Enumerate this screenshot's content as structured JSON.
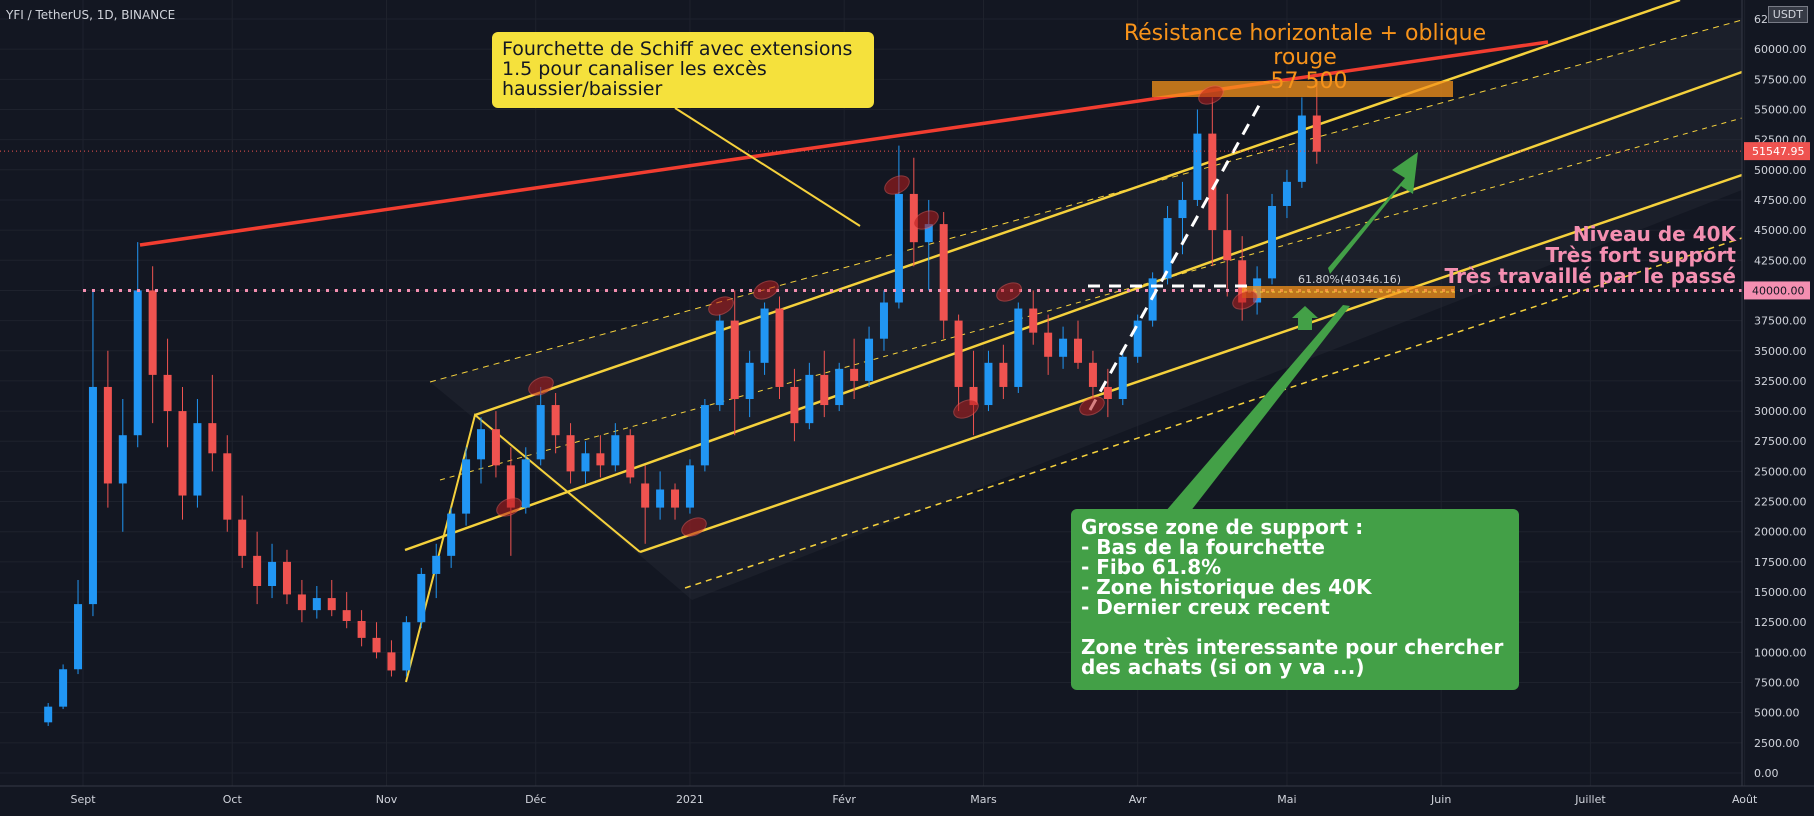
{
  "header": {
    "symbol": "YFI / TetherUS, 1D, BINANCE",
    "unit": "USDT"
  },
  "annotations": {
    "schiff_note": "Fourchette de Schiff avec extensions 1.5 pour canaliser les excès haussier/baissier",
    "resistance_line1": "Résistance horizontale + oblique rouge",
    "resistance_line2": "-57 500",
    "level_line1": "Niveau de 40K",
    "level_line2": "Très fort support",
    "level_line3": "Très travaillé par le passé",
    "fib_label": "61.80%(40346.16)",
    "support_note": "Grosse zone de support :\n- Bas de la fourchette\n- Fibo 61.8%\n- Zone historique des 40K\n- Dernier creux recent\n\nZone très interessante pour chercher\ndes achats (si on y va ...)"
  },
  "colors": {
    "background": "#131722",
    "grid": "#1e222d",
    "up": "#2196f3",
    "down": "#ef5350",
    "pitchfork": "#f5d13c",
    "resistance": "#f23d30",
    "level": "#f48fb1",
    "zone": "#f7931a",
    "arrow": "#43a047"
  },
  "chart_data": {
    "type": "candlestick",
    "y_axis": {
      "ticks": [
        "62500.00",
        "60000.00",
        "57500.00",
        "55000.00",
        "52500.00",
        "50000.00",
        "47500.00",
        "45000.00",
        "42500.00",
        "40000.00",
        "37500.00",
        "35000.00",
        "32500.00",
        "30000.00",
        "27500.00",
        "25000.00",
        "22500.00",
        "20000.00",
        "17500.00",
        "15000.00",
        "12500.00",
        "10000.00",
        "7500.00",
        "5000.00",
        "2500.00",
        "0.00"
      ],
      "range": [
        -2000,
        64500
      ]
    },
    "x_axis": {
      "ticks": [
        "Sept",
        "Oct",
        "Nov",
        "Déc",
        "2021",
        "Févr",
        "Mars",
        "Avr",
        "Mai",
        "Juin",
        "Juillet",
        "Août"
      ]
    },
    "current_price": "51547.95",
    "level_price": "40000.00",
    "candles": [
      [
        "2020-08-25",
        4200,
        5800,
        3900,
        5500
      ],
      [
        "2020-08-28",
        5500,
        9000,
        5300,
        8600
      ],
      [
        "2020-08-31",
        8600,
        16000,
        8200,
        14000
      ],
      [
        "2020-09-03",
        14000,
        40000,
        13000,
        32000
      ],
      [
        "2020-09-06",
        32000,
        35000,
        22000,
        24000
      ],
      [
        "2020-09-09",
        24000,
        31000,
        20000,
        28000
      ],
      [
        "2020-09-12",
        28000,
        44000,
        27000,
        40000
      ],
      [
        "2020-09-15",
        40000,
        42000,
        29000,
        33000
      ],
      [
        "2020-09-18",
        33000,
        36000,
        27000,
        30000
      ],
      [
        "2020-09-21",
        30000,
        32000,
        21000,
        23000
      ],
      [
        "2020-09-24",
        23000,
        31000,
        22000,
        29000
      ],
      [
        "2020-09-27",
        29000,
        33000,
        25000,
        26500
      ],
      [
        "2020-09-30",
        26500,
        28000,
        20000,
        21000
      ],
      [
        "2020-10-03",
        21000,
        23000,
        17000,
        18000
      ],
      [
        "2020-10-06",
        18000,
        20000,
        14000,
        15500
      ],
      [
        "2020-10-09",
        15500,
        19000,
        14500,
        17500
      ],
      [
        "2020-10-12",
        17500,
        18500,
        14000,
        14800
      ],
      [
        "2020-10-15",
        14800,
        16000,
        12500,
        13500
      ],
      [
        "2020-10-18",
        13500,
        15500,
        12800,
        14500
      ],
      [
        "2020-10-21",
        14500,
        16000,
        13000,
        13500
      ],
      [
        "2020-10-24",
        13500,
        15000,
        12000,
        12600
      ],
      [
        "2020-10-27",
        12600,
        13500,
        10500,
        11200
      ],
      [
        "2020-10-30",
        11200,
        12500,
        9500,
        10000
      ],
      [
        "2020-11-02",
        10000,
        11000,
        8000,
        8500
      ],
      [
        "2020-11-05",
        8500,
        13000,
        8000,
        12500
      ],
      [
        "2020-11-08",
        12500,
        17000,
        12000,
        16500
      ],
      [
        "2020-11-11",
        16500,
        19000,
        14500,
        18000
      ],
      [
        "2020-11-14",
        18000,
        22000,
        17000,
        21500
      ],
      [
        "2020-11-17",
        21500,
        27000,
        20500,
        26000
      ],
      [
        "2020-11-20",
        26000,
        29500,
        24000,
        28500
      ],
      [
        "2020-11-23",
        28500,
        30000,
        24500,
        25500
      ],
      [
        "2020-11-26",
        25500,
        27000,
        18000,
        22000
      ],
      [
        "2020-11-29",
        22000,
        27000,
        21500,
        26000
      ],
      [
        "2020-12-02",
        26000,
        32000,
        25500,
        30500
      ],
      [
        "2020-12-05",
        30500,
        31500,
        26500,
        28000
      ],
      [
        "2020-12-08",
        28000,
        29000,
        24000,
        25000
      ],
      [
        "2020-12-11",
        25000,
        27500,
        24000,
        26500
      ],
      [
        "2020-12-14",
        26500,
        28000,
        24500,
        25500
      ],
      [
        "2020-12-17",
        25500,
        29000,
        25000,
        28000
      ],
      [
        "2020-12-20",
        28000,
        28500,
        24000,
        24500
      ],
      [
        "2020-12-23",
        24000,
        25500,
        19000,
        22000
      ],
      [
        "2020-12-26",
        22000,
        25000,
        21000,
        23500
      ],
      [
        "2020-12-29",
        23500,
        24000,
        21000,
        22000
      ],
      [
        "2021-01-01",
        22000,
        26000,
        21500,
        25500
      ],
      [
        "2021-01-04",
        25500,
        31000,
        25000,
        30500
      ],
      [
        "2021-01-07",
        30500,
        38000,
        30000,
        37500
      ],
      [
        "2021-01-10",
        37500,
        40000,
        28000,
        31000
      ],
      [
        "2021-01-13",
        31000,
        35000,
        29500,
        34000
      ],
      [
        "2021-01-16",
        34000,
        39000,
        33000,
        38500
      ],
      [
        "2021-01-19",
        38500,
        39500,
        31000,
        32000
      ],
      [
        "2021-01-22",
        32000,
        33500,
        27500,
        29000
      ],
      [
        "2021-01-25",
        29000,
        34000,
        28500,
        33000
      ],
      [
        "2021-01-28",
        33000,
        35000,
        29500,
        30500
      ],
      [
        "2021-01-31",
        30500,
        34000,
        30000,
        33500
      ],
      [
        "2021-02-03",
        33500,
        36000,
        31000,
        32500
      ],
      [
        "2021-02-06",
        32500,
        37000,
        32000,
        36000
      ],
      [
        "2021-02-09",
        36000,
        40000,
        35000,
        39000
      ],
      [
        "2021-02-12",
        39000,
        52000,
        38500,
        48000
      ],
      [
        "2021-02-15",
        48000,
        51000,
        42000,
        44000
      ],
      [
        "2021-02-18",
        44000,
        47500,
        40000,
        45500
      ],
      [
        "2021-02-21",
        45500,
        46500,
        36000,
        37500
      ],
      [
        "2021-02-24",
        37500,
        38000,
        30000,
        32000
      ],
      [
        "2021-02-27",
        32000,
        35000,
        28000,
        30500
      ],
      [
        "2021-03-02",
        30500,
        35000,
        30000,
        34000
      ],
      [
        "2021-03-05",
        34000,
        35500,
        31000,
        32000
      ],
      [
        "2021-03-08",
        32000,
        39000,
        31500,
        38500
      ],
      [
        "2021-03-11",
        38500,
        40000,
        35500,
        36500
      ],
      [
        "2021-03-14",
        36500,
        38000,
        33000,
        34500
      ],
      [
        "2021-03-17",
        34500,
        37000,
        33500,
        36000
      ],
      [
        "2021-03-20",
        36000,
        37500,
        33500,
        34000
      ],
      [
        "2021-03-23",
        34000,
        35000,
        31000,
        32000
      ],
      [
        "2021-03-26",
        32000,
        33500,
        29500,
        31000
      ],
      [
        "2021-03-29",
        31000,
        35000,
        30500,
        34500
      ],
      [
        "2021-04-01",
        34500,
        38000,
        34000,
        37500
      ],
      [
        "2021-04-04",
        37500,
        41500,
        37000,
        41000
      ],
      [
        "2021-04-07",
        41000,
        47000,
        40500,
        46000
      ],
      [
        "2021-04-10",
        46000,
        49000,
        43000,
        47500
      ],
      [
        "2021-04-13",
        47500,
        55000,
        47000,
        53000
      ],
      [
        "2021-04-16",
        53000,
        56000,
        42000,
        45000
      ],
      [
        "2021-04-19",
        45000,
        48000,
        39500,
        42500
      ],
      [
        "2021-04-22",
        42500,
        44500,
        37500,
        39000
      ],
      [
        "2021-04-25",
        39000,
        42000,
        38000,
        41000
      ],
      [
        "2021-04-28",
        41000,
        48000,
        40500,
        47000
      ],
      [
        "2021-05-01",
        47000,
        50000,
        46000,
        49000
      ],
      [
        "2021-05-04",
        49000,
        56000,
        48500,
        54500
      ],
      [
        "2021-05-07",
        54500,
        57500,
        50500,
        51500
      ]
    ]
  }
}
